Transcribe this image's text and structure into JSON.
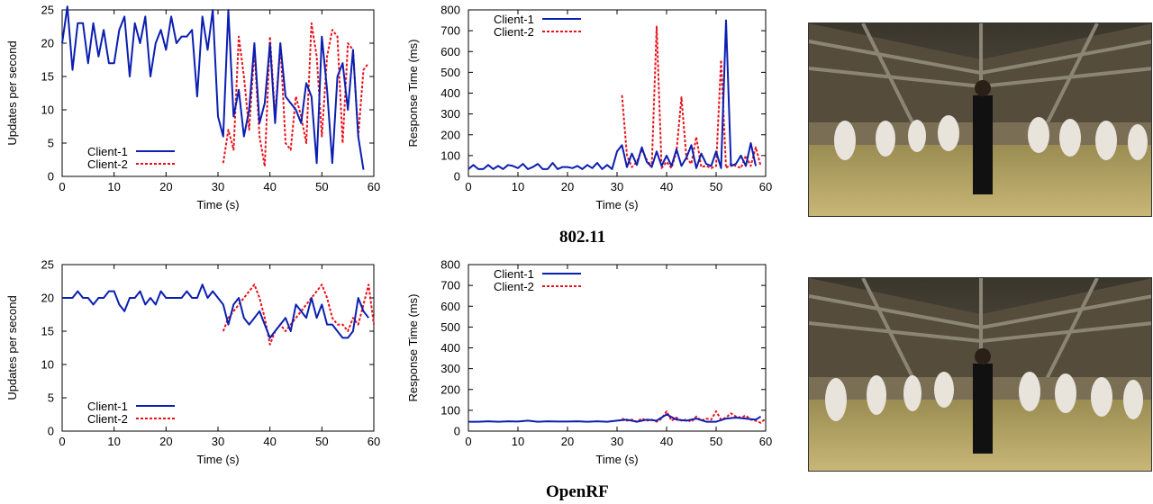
{
  "colors": {
    "client1": "#0b1fb0",
    "client2": "#e8121b",
    "axis": "#000000"
  },
  "group_titles": {
    "top": "802.11",
    "bottom": "OpenRF"
  },
  "photos": {
    "top": "video-frame-dance-hall",
    "bottom": "video-frame-dance-hall"
  },
  "chart_data": [
    {
      "type": "line",
      "ylabel": "Updates per second",
      "xlabel": "Time (s)",
      "xlim": [
        0,
        60
      ],
      "ylim": [
        0,
        25
      ],
      "xticks": [
        0,
        10,
        20,
        30,
        40,
        50,
        60
      ],
      "yticks": [
        0,
        5,
        10,
        15,
        20,
        25
      ],
      "grid": false,
      "legend_position": "bottom-left",
      "series": [
        {
          "name": "Client-1",
          "x": [
            0,
            1,
            2,
            3,
            4,
            5,
            6,
            7,
            8,
            9,
            10,
            11,
            12,
            13,
            14,
            15,
            16,
            17,
            18,
            19,
            20,
            21,
            22,
            23,
            24,
            25,
            26,
            27,
            28,
            29,
            30,
            31,
            32,
            33,
            34,
            35,
            36,
            37,
            38,
            39,
            40,
            41,
            42,
            43,
            44,
            45,
            46,
            47,
            48,
            49,
            50,
            51,
            52,
            53,
            54,
            55,
            56,
            57,
            58,
            59
          ],
          "y": [
            20,
            25.5,
            16,
            23,
            23,
            17,
            23,
            18,
            22,
            17,
            17,
            22,
            24,
            15,
            23,
            20,
            24,
            15,
            20,
            22,
            19,
            24,
            20,
            21,
            21,
            22,
            12,
            24,
            19,
            25,
            9,
            6,
            25,
            9,
            13,
            6,
            10,
            20,
            8,
            11,
            20,
            8,
            20,
            12,
            11,
            10,
            8,
            14,
            12,
            2,
            21,
            13,
            2,
            15,
            17,
            10,
            19,
            6,
            1,
            null
          ]
        },
        {
          "name": "Client-2",
          "x": [
            31,
            32,
            33,
            34,
            35,
            36,
            37,
            38,
            39,
            40,
            41,
            42,
            43,
            44,
            45,
            46,
            47,
            48,
            49,
            50,
            51,
            52,
            53,
            54,
            55,
            56,
            57,
            58,
            59,
            60
          ],
          "y": [
            2,
            7,
            4,
            21,
            15,
            7,
            19,
            6,
            1.5,
            21,
            9,
            20,
            5,
            4,
            12,
            9,
            5,
            23,
            18,
            6,
            18,
            22,
            21,
            5,
            20,
            19,
            6,
            16,
            17,
            null
          ]
        }
      ]
    },
    {
      "type": "line",
      "ylabel": "Response Time (ms)",
      "xlabel": "Time (s)",
      "xlim": [
        0,
        60
      ],
      "ylim": [
        0,
        800
      ],
      "xticks": [
        0,
        10,
        20,
        30,
        40,
        50,
        60
      ],
      "yticks": [
        0,
        100,
        200,
        300,
        400,
        500,
        600,
        700,
        800
      ],
      "grid": false,
      "legend_position": "top-left",
      "series": [
        {
          "name": "Client-1",
          "x": [
            0,
            1,
            2,
            3,
            4,
            5,
            6,
            7,
            8,
            9,
            10,
            11,
            12,
            13,
            14,
            15,
            16,
            17,
            18,
            19,
            20,
            21,
            22,
            23,
            24,
            25,
            26,
            27,
            28,
            29,
            30,
            31,
            32,
            33,
            34,
            35,
            36,
            37,
            38,
            39,
            40,
            41,
            42,
            43,
            44,
            45,
            46,
            47,
            48,
            49,
            50,
            51,
            52,
            53,
            54,
            55,
            56,
            57,
            58,
            59
          ],
          "y": [
            35,
            55,
            35,
            35,
            55,
            35,
            50,
            35,
            55,
            50,
            40,
            60,
            35,
            45,
            60,
            35,
            35,
            65,
            35,
            45,
            45,
            40,
            50,
            35,
            55,
            40,
            65,
            35,
            55,
            35,
            120,
            150,
            45,
            110,
            55,
            140,
            70,
            45,
            120,
            50,
            100,
            50,
            130,
            50,
            90,
            150,
            40,
            110,
            60,
            50,
            120,
            40,
            750,
            50,
            60,
            100,
            50,
            160,
            50,
            null
          ]
        },
        {
          "name": "Client-2",
          "x": [
            31,
            32,
            33,
            34,
            35,
            36,
            37,
            38,
            39,
            40,
            41,
            42,
            43,
            44,
            45,
            46,
            47,
            48,
            49,
            50,
            51,
            52,
            53,
            54,
            55,
            56,
            57,
            58,
            59
          ],
          "y": [
            390,
            100,
            45,
            70,
            130,
            80,
            45,
            720,
            40,
            70,
            40,
            120,
            380,
            90,
            60,
            190,
            45,
            50,
            40,
            50,
            560,
            40,
            60,
            50,
            40,
            100,
            50,
            140,
            50
          ]
        }
      ]
    },
    {
      "type": "line",
      "ylabel": "Updates per second",
      "xlabel": "Time (s)",
      "xlim": [
        0,
        60
      ],
      "ylim": [
        0,
        25
      ],
      "xticks": [
        0,
        10,
        20,
        30,
        40,
        50,
        60
      ],
      "yticks": [
        0,
        5,
        10,
        15,
        20,
        25
      ],
      "grid": false,
      "legend_position": "bottom-left",
      "series": [
        {
          "name": "Client-1",
          "x": [
            0,
            1,
            2,
            3,
            4,
            5,
            6,
            7,
            8,
            9,
            10,
            11,
            12,
            13,
            14,
            15,
            16,
            17,
            18,
            19,
            20,
            21,
            22,
            23,
            24,
            25,
            26,
            27,
            28,
            29,
            30,
            31,
            32,
            33,
            34,
            35,
            36,
            37,
            38,
            39,
            40,
            41,
            42,
            43,
            44,
            45,
            46,
            47,
            48,
            49,
            50,
            51,
            52,
            53,
            54,
            55,
            56,
            57,
            58,
            59
          ],
          "y": [
            20,
            20,
            20,
            21,
            20,
            20,
            19,
            20,
            20,
            21,
            21,
            19,
            18,
            20,
            20,
            21,
            19,
            20,
            19,
            21,
            20,
            20,
            20,
            20,
            21,
            20,
            20,
            22,
            20,
            21,
            20,
            19,
            16,
            19,
            20,
            17,
            16,
            17,
            18,
            16,
            14,
            15,
            16,
            17,
            15,
            19,
            18,
            17,
            20,
            17,
            19,
            16,
            16,
            15,
            14,
            14,
            15,
            20,
            18,
            17
          ]
        },
        {
          "name": "Client-2",
          "x": [
            31,
            32,
            33,
            34,
            35,
            36,
            37,
            38,
            39,
            40,
            41,
            42,
            43,
            44,
            45,
            46,
            47,
            48,
            49,
            50,
            51,
            52,
            53,
            54,
            55,
            56,
            57,
            58,
            59,
            60
          ],
          "y": [
            15,
            17,
            18,
            19,
            20,
            21,
            22,
            20,
            17,
            13,
            15,
            16,
            15,
            16,
            17,
            18,
            19,
            20,
            21,
            22,
            20,
            17,
            16,
            16,
            15,
            17,
            16,
            19,
            22,
            16
          ]
        }
      ]
    },
    {
      "type": "line",
      "ylabel": "Response Time (ms)",
      "xlabel": "Time (s)",
      "xlim": [
        0,
        60
      ],
      "ylim": [
        0,
        800
      ],
      "xticks": [
        0,
        10,
        20,
        30,
        40,
        50,
        60
      ],
      "yticks": [
        0,
        100,
        200,
        300,
        400,
        500,
        600,
        700,
        800
      ],
      "grid": false,
      "legend_position": "top-left",
      "series": [
        {
          "name": "Client-1",
          "x": [
            0,
            2,
            4,
            6,
            8,
            10,
            12,
            14,
            16,
            18,
            20,
            22,
            24,
            26,
            28,
            30,
            32,
            34,
            36,
            38,
            40,
            42,
            44,
            46,
            48,
            50,
            52,
            54,
            56,
            58,
            59
          ],
          "y": [
            45,
            45,
            47,
            45,
            47,
            46,
            50,
            45,
            47,
            46,
            46,
            47,
            45,
            47,
            45,
            50,
            55,
            45,
            55,
            50,
            80,
            55,
            50,
            60,
            45,
            45,
            60,
            65,
            60,
            55,
            70
          ]
        },
        {
          "name": "Client-2",
          "x": [
            31,
            32,
            33,
            34,
            35,
            36,
            37,
            38,
            39,
            40,
            41,
            42,
            43,
            44,
            45,
            46,
            47,
            48,
            49,
            50,
            51,
            52,
            53,
            54,
            55,
            56,
            57,
            58,
            59,
            60
          ],
          "y": [
            60,
            50,
            55,
            45,
            60,
            50,
            55,
            45,
            60,
            95,
            50,
            65,
            50,
            55,
            45,
            70,
            50,
            60,
            55,
            95,
            55,
            65,
            85,
            70,
            65,
            75,
            55,
            50,
            40,
            60
          ]
        }
      ]
    }
  ]
}
